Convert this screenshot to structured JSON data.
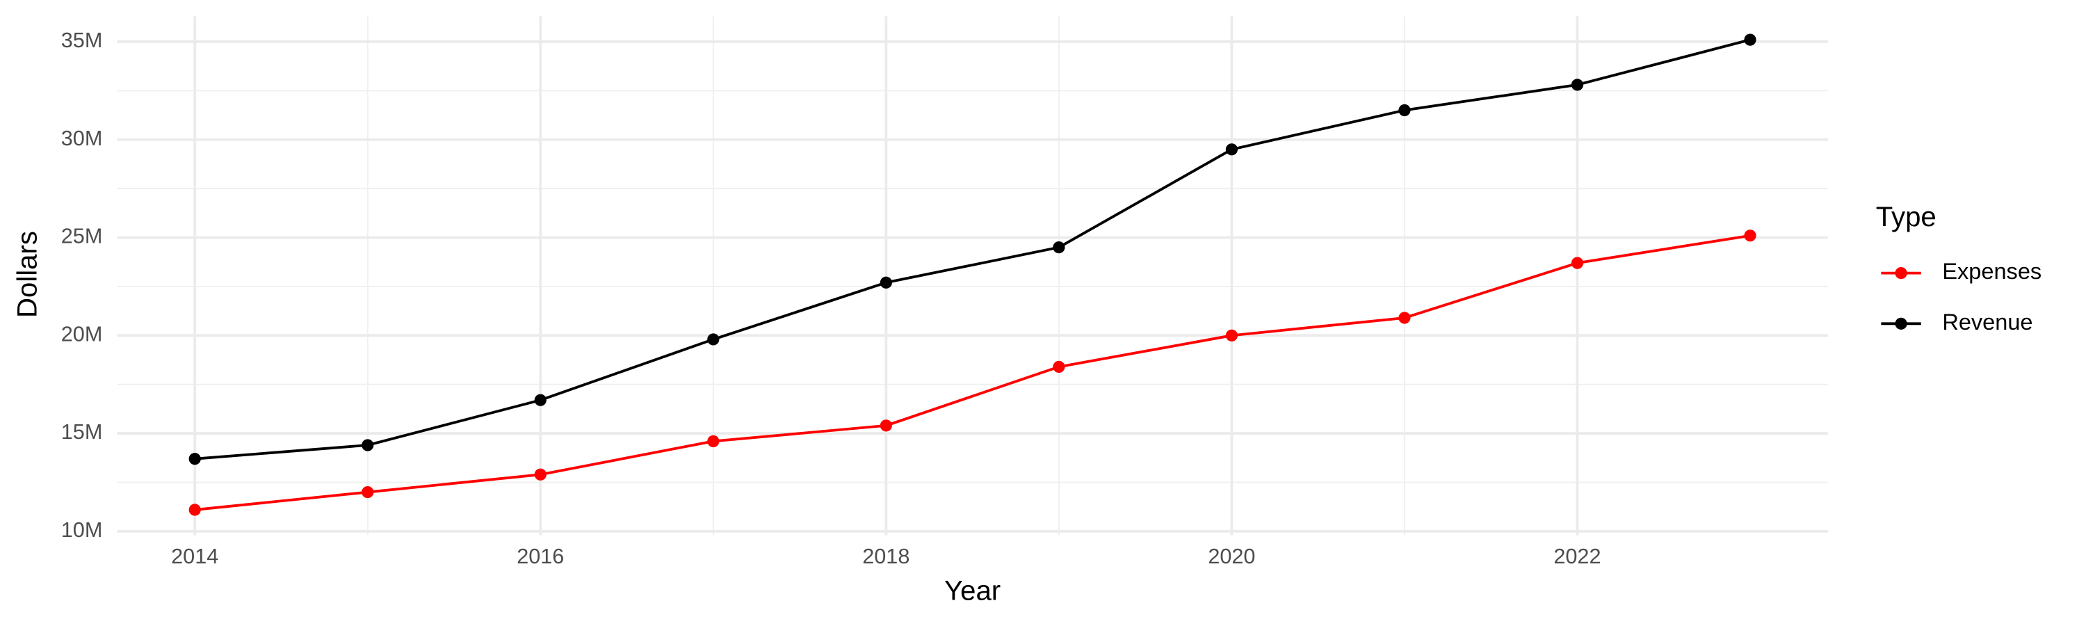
{
  "chart_data": {
    "type": "line",
    "x_label": "Year",
    "y_label": "Dollars",
    "x": [
      2014,
      2015,
      2016,
      2017,
      2018,
      2019,
      2020,
      2021,
      2022,
      2023
    ],
    "series": [
      {
        "name": "Expenses",
        "color": "#ff0000",
        "values": [
          11100000,
          12000000,
          12900000,
          14600000,
          15400000,
          18400000,
          20000000,
          20900000,
          23700000,
          25100000
        ]
      },
      {
        "name": "Revenue",
        "color": "#000000",
        "values": [
          13700000,
          14400000,
          16700000,
          19800000,
          22700000,
          24500000,
          29500000,
          31500000,
          32800000,
          35100000
        ]
      }
    ],
    "xlim": [
      2013.55,
      2023.45
    ],
    "xticks": [
      2014,
      2016,
      2018,
      2020,
      2022
    ],
    "ylim": [
      9800000,
      36300000
    ],
    "yticks": [
      {
        "value": 10000000,
        "label": "10M"
      },
      {
        "value": 15000000,
        "label": "15M"
      },
      {
        "value": 20000000,
        "label": "20M"
      },
      {
        "value": 25000000,
        "label": "25M"
      },
      {
        "value": 30000000,
        "label": "30M"
      },
      {
        "value": 35000000,
        "label": "35M"
      }
    ],
    "grid": true,
    "legend_title": "Type",
    "legend_position": "right"
  }
}
